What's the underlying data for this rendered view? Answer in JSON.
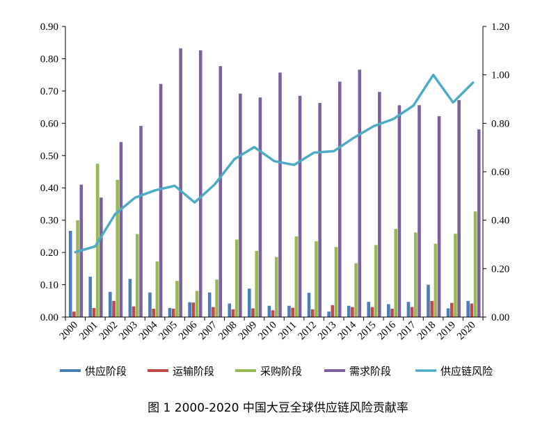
{
  "caption": "图 1 2000-2020 中国大豆全球供应链风险贡献率",
  "chart_data": {
    "type": "bar",
    "title": "",
    "categories": [
      "2000",
      "2001",
      "2002",
      "2003",
      "2004",
      "2005",
      "2006",
      "2007",
      "2008",
      "2009",
      "2010",
      "2011",
      "2012",
      "2013",
      "2014",
      "2015",
      "2016",
      "2017",
      "2018",
      "2019",
      "2020"
    ],
    "ylim": [
      0,
      0.9
    ],
    "y_ticks": [
      "0.00",
      "0.10",
      "0.20",
      "0.30",
      "0.40",
      "0.50",
      "0.60",
      "0.70",
      "0.80",
      "0.90"
    ],
    "y2lim": [
      0,
      1.2
    ],
    "y2_ticks": [
      "0.00",
      "0.20",
      "0.40",
      "0.60",
      "0.80",
      "1.00",
      "1.20"
    ],
    "grid": false,
    "legend_position": "bottom",
    "series": [
      {
        "name": "供应阶段",
        "type": "bar",
        "axis": "left",
        "color": "#4a7ebb",
        "values": [
          0.267,
          0.125,
          0.078,
          0.118,
          0.076,
          0.028,
          0.046,
          0.076,
          0.042,
          0.088,
          0.035,
          0.035,
          0.075,
          0.017,
          0.035,
          0.047,
          0.04,
          0.047,
          0.1,
          0.027,
          0.05
        ]
      },
      {
        "name": "运输阶段",
        "type": "bar",
        "axis": "left",
        "color": "#be4b48",
        "values": [
          0.017,
          0.028,
          0.05,
          0.033,
          0.026,
          0.026,
          0.045,
          0.031,
          0.024,
          0.027,
          0.021,
          0.029,
          0.024,
          0.037,
          0.031,
          0.031,
          0.026,
          0.031,
          0.05,
          0.044,
          0.042
        ]
      },
      {
        "name": "采购阶段",
        "type": "bar",
        "axis": "left",
        "color": "#98b954",
        "values": [
          0.3,
          0.475,
          0.425,
          0.257,
          0.172,
          0.112,
          0.081,
          0.116,
          0.24,
          0.205,
          0.186,
          0.25,
          0.235,
          0.217,
          0.167,
          0.223,
          0.273,
          0.262,
          0.227,
          0.258,
          0.327
        ]
      },
      {
        "name": "需求阶段",
        "type": "bar",
        "axis": "left",
        "color": "#7d60a0",
        "values": [
          0.41,
          0.37,
          0.542,
          0.592,
          0.722,
          0.832,
          0.826,
          0.777,
          0.692,
          0.68,
          0.757,
          0.685,
          0.663,
          0.729,
          0.766,
          0.697,
          0.656,
          0.656,
          0.622,
          0.672,
          0.581
        ]
      },
      {
        "name": "供应链风险",
        "type": "line",
        "axis": "right",
        "color": "#4bacc6",
        "values": [
          0.268,
          0.292,
          0.425,
          0.493,
          0.523,
          0.542,
          0.473,
          0.547,
          0.652,
          0.702,
          0.644,
          0.628,
          0.679,
          0.685,
          0.74,
          0.788,
          0.818,
          0.873,
          1.0,
          0.886,
          0.968
        ]
      }
    ]
  }
}
